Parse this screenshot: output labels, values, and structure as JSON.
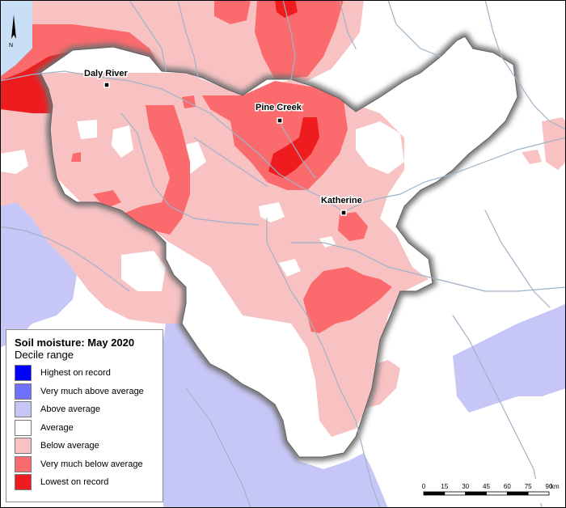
{
  "legend": {
    "title": "Soil moisture: May 2020",
    "subtitle": "Decile range",
    "items": [
      {
        "label": "Highest on record",
        "color": "#0000ff"
      },
      {
        "label": "Very much above average",
        "color": "#7070ff"
      },
      {
        "label": "Above average",
        "color": "#c7c7f7"
      },
      {
        "label": "Average",
        "color": "#ffffff"
      },
      {
        "label": "Below average",
        "color": "#f8c2c3"
      },
      {
        "label": "Very much below average",
        "color": "#fb6a6c"
      },
      {
        "label": "Lowest on record",
        "color": "#ee1c1e"
      }
    ]
  },
  "towns": {
    "daly_river": "Daly River",
    "pine_creek": "Pine Creek",
    "katherine": "Katherine"
  },
  "north_arrow": {
    "label": "N"
  },
  "scale_bar": {
    "ticks": [
      "0",
      "15",
      "30",
      "45",
      "60",
      "75",
      "90"
    ],
    "unit": "km"
  },
  "colors": {
    "water": "#c9dff5",
    "rivers": "#9fb3c8",
    "outside_catchment_pink": "#f8c2c3",
    "outside_catchment_blue": "#c7c7f7",
    "catchment_border_shadow": "#6f6f6f"
  }
}
